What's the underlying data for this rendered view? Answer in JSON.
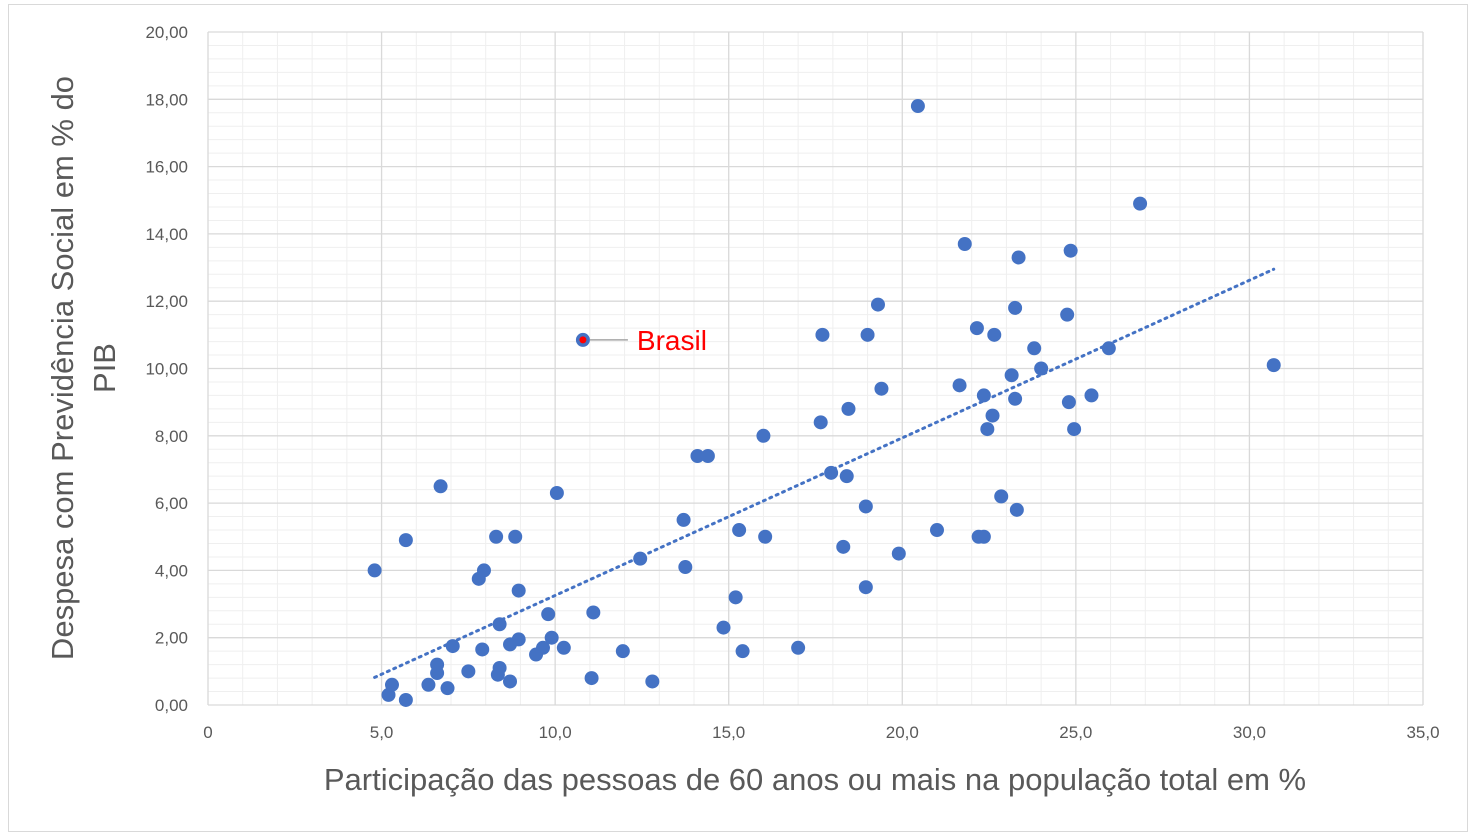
{
  "chart_data": {
    "type": "scatter",
    "title": "",
    "xlabel": "Participação das pessoas de 60 anos ou mais na população total em %",
    "ylabel_lines": [
      "Despesa com Previdência Social em % do",
      "PIB"
    ],
    "xlim": [
      0,
      35
    ],
    "ylim": [
      0,
      20
    ],
    "x_ticks": [
      0,
      5,
      10,
      15,
      20,
      25,
      30,
      35
    ],
    "x_tick_labels": [
      "0",
      "5,0",
      "10,0",
      "15,0",
      "20,0",
      "25,0",
      "30,0",
      "35,0"
    ],
    "y_ticks": [
      0,
      2,
      4,
      6,
      8,
      10,
      12,
      14,
      16,
      18,
      20
    ],
    "y_tick_labels": [
      "0,00",
      "2,00",
      "4,00",
      "6,00",
      "8,00",
      "10,00",
      "12,00",
      "14,00",
      "16,00",
      "18,00",
      "20,00"
    ],
    "grid": {
      "major": true,
      "minor": true
    },
    "colors": {
      "points": "#4472c4",
      "highlight": "#ff0000",
      "trendline": "#4472c4",
      "grid_major": "#d9d9d9",
      "grid_minor": "#efefef",
      "text": "#595959"
    },
    "series": [
      {
        "points": [
          [
            4.8,
            4.0
          ],
          [
            5.2,
            0.3
          ],
          [
            5.3,
            0.6
          ],
          [
            5.7,
            0.15
          ],
          [
            5.7,
            4.9
          ],
          [
            6.35,
            0.6
          ],
          [
            6.6,
            1.2
          ],
          [
            6.6,
            0.95
          ],
          [
            6.7,
            6.5
          ],
          [
            6.9,
            0.5
          ],
          [
            7.05,
            1.75
          ],
          [
            7.5,
            1.0
          ],
          [
            7.8,
            3.75
          ],
          [
            7.9,
            1.65
          ],
          [
            7.95,
            4.0
          ],
          [
            8.3,
            5.0
          ],
          [
            8.35,
            0.9
          ],
          [
            8.4,
            1.1
          ],
          [
            8.4,
            2.4
          ],
          [
            8.7,
            0.7
          ],
          [
            8.7,
            1.8
          ],
          [
            8.85,
            5.0
          ],
          [
            8.95,
            1.95
          ],
          [
            8.95,
            3.4
          ],
          [
            9.45,
            1.5
          ],
          [
            9.65,
            1.7
          ],
          [
            9.8,
            2.7
          ],
          [
            9.9,
            2.0
          ],
          [
            10.05,
            6.3
          ],
          [
            10.25,
            1.7
          ],
          [
            11.05,
            0.8
          ],
          [
            11.1,
            2.75
          ],
          [
            11.95,
            1.6
          ],
          [
            12.45,
            4.35
          ],
          [
            12.8,
            0.7
          ],
          [
            13.7,
            5.5
          ],
          [
            13.75,
            4.1
          ],
          [
            14.1,
            7.4
          ],
          [
            14.4,
            7.4
          ],
          [
            14.85,
            2.3
          ],
          [
            15.2,
            3.2
          ],
          [
            15.3,
            5.2
          ],
          [
            15.4,
            1.6
          ],
          [
            16.0,
            8.0
          ],
          [
            16.05,
            5.0
          ],
          [
            17.0,
            1.7
          ],
          [
            17.65,
            8.4
          ],
          [
            17.7,
            11.0
          ],
          [
            17.95,
            6.9
          ],
          [
            18.3,
            4.7
          ],
          [
            18.4,
            6.8
          ],
          [
            18.45,
            8.8
          ],
          [
            18.95,
            5.9
          ],
          [
            18.95,
            3.5
          ],
          [
            19.0,
            11.0
          ],
          [
            19.3,
            11.9
          ],
          [
            19.4,
            9.4
          ],
          [
            19.9,
            4.5
          ],
          [
            20.45,
            17.8
          ],
          [
            21.0,
            5.2
          ],
          [
            21.65,
            9.5
          ],
          [
            21.8,
            13.7
          ],
          [
            22.15,
            11.2
          ],
          [
            22.2,
            5.0
          ],
          [
            22.35,
            5.0
          ],
          [
            22.35,
            9.2
          ],
          [
            22.45,
            8.2
          ],
          [
            22.6,
            8.6
          ],
          [
            22.65,
            11.0
          ],
          [
            22.85,
            6.2
          ],
          [
            23.15,
            9.8
          ],
          [
            23.25,
            11.8
          ],
          [
            23.25,
            9.1
          ],
          [
            23.3,
            5.8
          ],
          [
            23.35,
            13.3
          ],
          [
            23.8,
            10.6
          ],
          [
            24.0,
            10.0
          ],
          [
            24.75,
            11.6
          ],
          [
            24.8,
            9.0
          ],
          [
            24.85,
            13.5
          ],
          [
            24.95,
            8.2
          ],
          [
            25.45,
            9.2
          ],
          [
            25.95,
            10.6
          ],
          [
            26.85,
            14.9
          ],
          [
            30.7,
            10.1
          ]
        ]
      }
    ],
    "highlight_point": {
      "label": "Brasil",
      "x": 10.8,
      "y": 10.85
    },
    "trendline": {
      "type": "linear",
      "x_start": 4.8,
      "x_end": 30.7,
      "y_start": 0.82,
      "y_end": 12.95
    }
  }
}
